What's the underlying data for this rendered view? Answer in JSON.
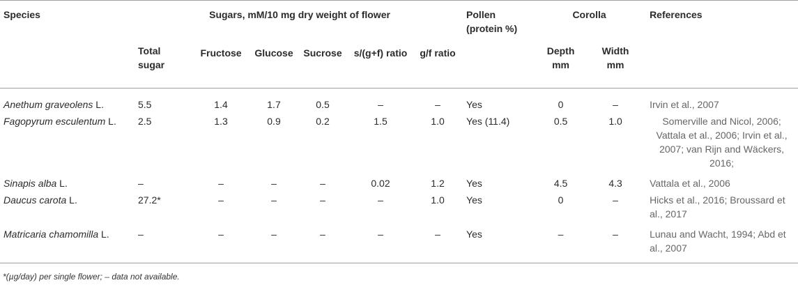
{
  "headers": {
    "species": "Species",
    "sugars": "Sugars, mM/10 mg dry weight of flower",
    "pollen_line1": "Pollen",
    "pollen_line2": "(protein %)",
    "corolla": "Corolla",
    "references": "References",
    "total_line1": "Total",
    "total_line2": "sugar",
    "fructose": "Fructose",
    "glucose": "Glucose",
    "sucrose": "Sucrose",
    "sgf": "s/(g+f) ratio",
    "gf": "g/f ratio",
    "depth_line1": "Depth",
    "depth_line2": "mm",
    "width_line1": "Width",
    "width_line2": "mm"
  },
  "rows": [
    {
      "species": "Anethum graveolens",
      "authority": " L.",
      "total": "5.5",
      "fructose": "1.4",
      "glucose": "1.7",
      "sucrose": "0.5",
      "sgf": "–",
      "gf": "–",
      "pollen": "Yes",
      "depth": "0",
      "width": "–",
      "ref": "Irvin et al., 2007"
    },
    {
      "species": "Fagopyrum esculentum",
      "authority": " L.",
      "total": "2.5",
      "fructose": "1.3",
      "glucose": "0.9",
      "sucrose": "0.2",
      "sgf": "1.5",
      "gf": "1.0",
      "pollen": "Yes (11.4)",
      "depth": "0.5",
      "width": "1.0",
      "ref": "Somerville and Nicol, 2006; Vattala et al., 2006; Irvin et al., 2007; van Rijn and Wäckers, 2016;"
    },
    {
      "species": "Sinapis alba",
      "authority": " L.",
      "total": "–",
      "fructose": "–",
      "glucose": "–",
      "sucrose": "–",
      "sgf": "0.02",
      "gf": "1.2",
      "pollen": "Yes",
      "depth": "4.5",
      "width": "4.3",
      "ref": "Vattala et al., 2006"
    },
    {
      "species": "Daucus carota",
      "authority": " L.",
      "total": "27.2*",
      "fructose": "–",
      "glucose": "–",
      "sucrose": "–",
      "sgf": "–",
      "gf": "1.0",
      "pollen": "Yes",
      "depth": "0",
      "width": "–",
      "ref": "Hicks et al., 2016; Broussard et al., 2017"
    },
    {
      "species": "Matricaria chamomilla",
      "authority": " L.",
      "total": "–",
      "fructose": "–",
      "glucose": "–",
      "sucrose": "–",
      "sgf": "–",
      "gf": "–",
      "pollen": "Yes",
      "depth": "–",
      "width": "–",
      "ref": "Lunau and Wacht, 1994; Abd et al., 2007"
    }
  ],
  "footnote": "*(µg/day) per single flower; – data not available."
}
